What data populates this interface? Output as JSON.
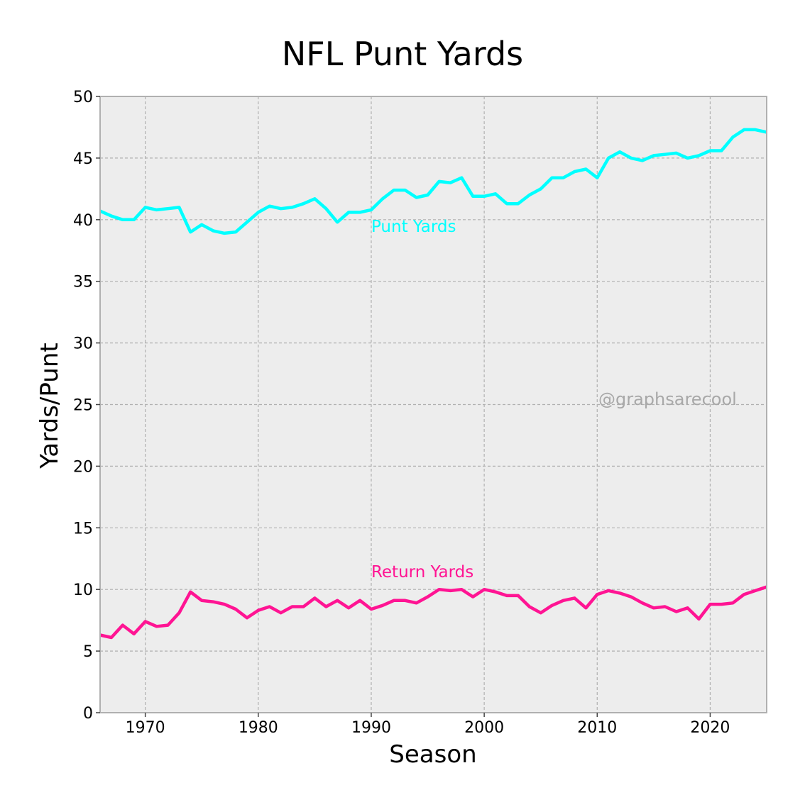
{
  "chart_data": {
    "type": "line",
    "title": "NFL Punt Yards",
    "xlabel": "Season",
    "ylabel": "Yards/Punt",
    "xlim": [
      1966,
      2025
    ],
    "ylim": [
      0,
      50
    ],
    "xticks": [
      1970,
      1980,
      1990,
      2000,
      2010,
      2020
    ],
    "yticks": [
      0,
      5,
      10,
      15,
      20,
      25,
      30,
      35,
      40,
      45,
      50
    ],
    "grid": true,
    "watermark": "@graphsarecool",
    "x": [
      1966,
      1967,
      1968,
      1969,
      1970,
      1971,
      1972,
      1973,
      1974,
      1975,
      1976,
      1977,
      1978,
      1979,
      1980,
      1981,
      1982,
      1983,
      1984,
      1985,
      1986,
      1987,
      1988,
      1989,
      1990,
      1991,
      1992,
      1993,
      1994,
      1995,
      1996,
      1997,
      1998,
      1999,
      2000,
      2001,
      2002,
      2003,
      2004,
      2005,
      2006,
      2007,
      2008,
      2009,
      2010,
      2011,
      2012,
      2013,
      2014,
      2015,
      2016,
      2017,
      2018,
      2019,
      2020,
      2021,
      2022,
      2023,
      2024,
      2025
    ],
    "series": [
      {
        "name": "Punt Yards",
        "label": "Punt Yards",
        "color": "#00FFFF",
        "label_at": [
          1990,
          39.0
        ],
        "values": [
          40.7,
          40.3,
          40.0,
          40.0,
          41.0,
          40.8,
          40.9,
          41.0,
          39.0,
          39.6,
          39.1,
          38.9,
          39.0,
          39.8,
          40.6,
          41.1,
          40.9,
          41.0,
          41.3,
          41.7,
          40.9,
          39.8,
          40.6,
          40.6,
          40.8,
          41.7,
          42.4,
          42.4,
          41.8,
          42.0,
          43.1,
          43.0,
          43.4,
          41.9,
          41.9,
          42.1,
          41.3,
          41.3,
          42.0,
          42.5,
          43.4,
          43.4,
          43.9,
          44.1,
          43.4,
          45.0,
          45.5,
          45.0,
          44.8,
          45.2,
          45.3,
          45.4,
          45.0,
          45.2,
          45.6,
          45.6,
          46.7,
          47.3,
          47.3,
          47.1
        ]
      },
      {
        "name": "Return Yards",
        "label": "Return Yards",
        "color": "#FF1493",
        "label_at": [
          1990,
          11.0
        ],
        "values": [
          6.3,
          6.1,
          7.1,
          6.4,
          7.4,
          7.0,
          7.1,
          8.1,
          9.8,
          9.1,
          9.0,
          8.8,
          8.4,
          7.7,
          8.3,
          8.6,
          8.1,
          8.6,
          8.6,
          9.3,
          8.6,
          9.1,
          8.5,
          9.1,
          8.4,
          8.7,
          9.1,
          9.1,
          8.9,
          9.4,
          10.0,
          9.9,
          10.0,
          9.4,
          10.0,
          9.8,
          9.5,
          9.5,
          8.6,
          8.1,
          8.7,
          9.1,
          9.3,
          8.5,
          9.6,
          9.9,
          9.7,
          9.4,
          8.9,
          8.5,
          8.6,
          8.2,
          8.5,
          7.6,
          8.8,
          8.8,
          8.9,
          9.6,
          9.9,
          10.2
        ]
      }
    ]
  }
}
